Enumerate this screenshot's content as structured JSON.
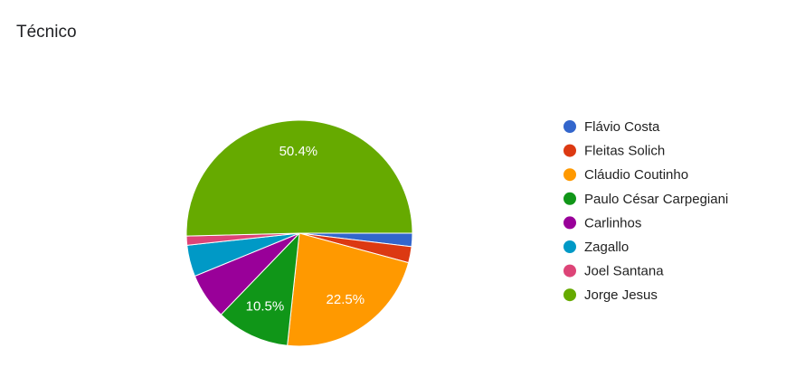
{
  "chart_data": {
    "type": "pie",
    "title": "Técnico",
    "categories": [
      "Flávio Costa",
      "Fleitas Solich",
      "Cláudio Coutinho",
      "Paulo César Carpegiani",
      "Carlinhos",
      "Zagallo",
      "Joel Santana",
      "Jorge Jesus"
    ],
    "values": [
      1.9,
      2.3,
      22.5,
      10.5,
      6.6,
      4.5,
      1.3,
      50.4
    ],
    "value_labels": [
      null,
      null,
      "22.5%",
      "10.5%",
      null,
      null,
      null,
      "50.4%"
    ],
    "colors": [
      "#3366cc",
      "#dc3912",
      "#ff9900",
      "#109618",
      "#990099",
      "#0099c6",
      "#dd4477",
      "#66aa00"
    ],
    "legend": "right"
  }
}
